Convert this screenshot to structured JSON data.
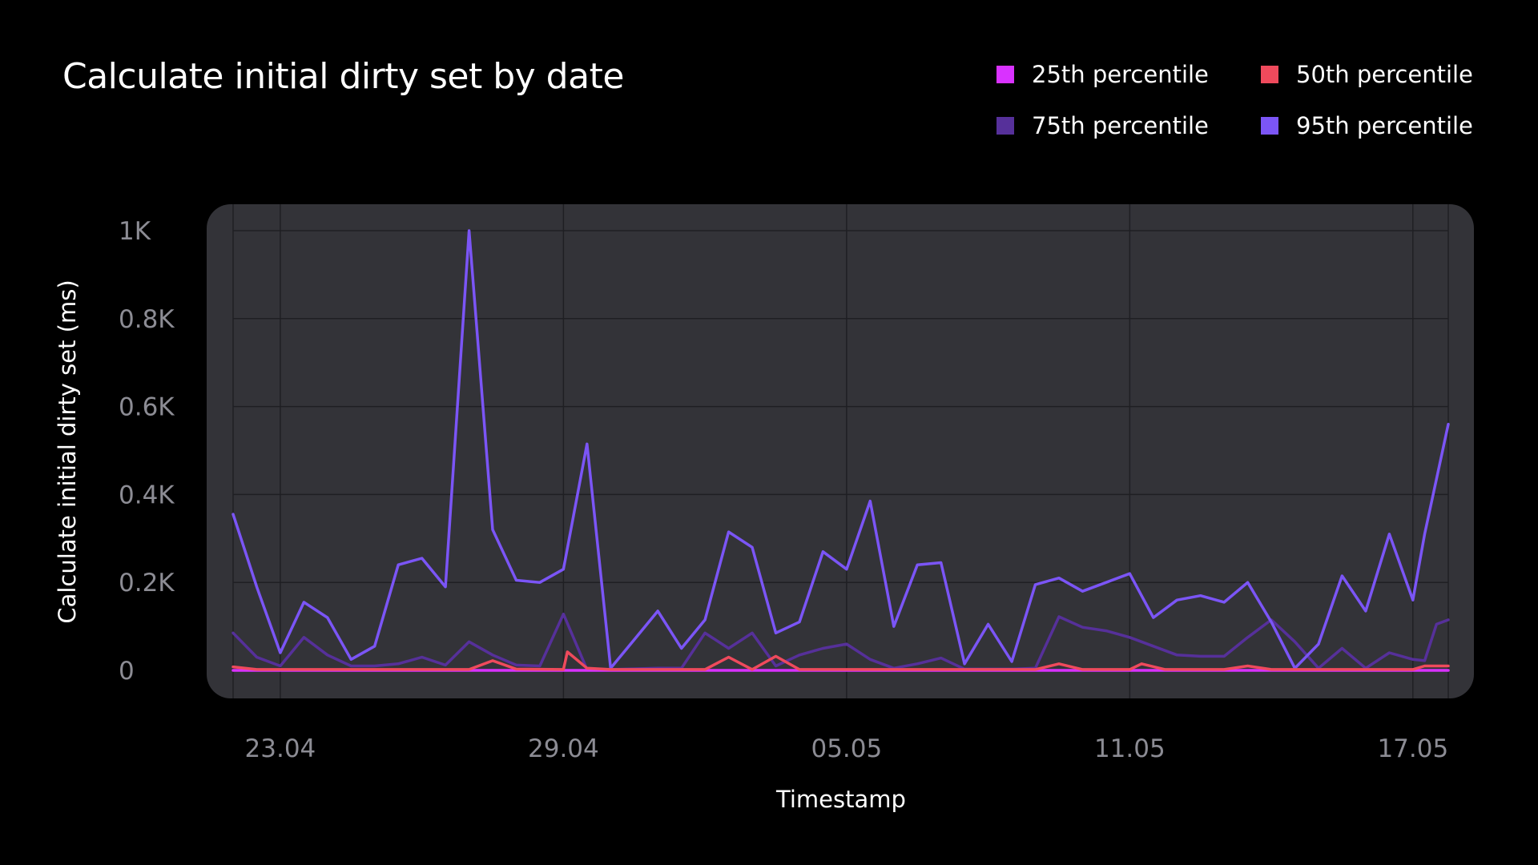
{
  "chart_data": {
    "type": "line",
    "title": "Calculate initial dirty set by date",
    "xlabel": "Timestamp",
    "ylabel": "Calculate initial dirty set (ms)",
    "x_start": "22.04",
    "x_end": "17.05",
    "x_ticks": [
      {
        "date": "23.04",
        "label": "23.04"
      },
      {
        "date": "29.04",
        "label": "29.04"
      },
      {
        "date": "05.05",
        "label": "05.05"
      },
      {
        "date": "11.05",
        "label": "11.05"
      },
      {
        "date": "17.05",
        "label": "17.05"
      }
    ],
    "y_ticks": [
      {
        "value": 0,
        "label": "0"
      },
      {
        "value": 200,
        "label": "0.2K"
      },
      {
        "value": 400,
        "label": "0.4K"
      },
      {
        "value": 600,
        "label": "0.6K"
      },
      {
        "value": 800,
        "label": "0.8K"
      },
      {
        "value": 1000,
        "label": "1K"
      }
    ],
    "ylim": [
      0,
      1000
    ],
    "grid": true,
    "legend_position": "top-right",
    "series": [
      {
        "name": "25th percentile",
        "color": "#d932ff",
        "points": [
          [
            "22.04 00:00",
            0
          ],
          [
            "22.04 12:00",
            0
          ],
          [
            "23.04 00:00",
            0
          ],
          [
            "23.04 12:00",
            0
          ],
          [
            "24.04 00:00",
            0
          ],
          [
            "24.04 12:00",
            0
          ],
          [
            "25.04 00:00",
            0
          ],
          [
            "25.04 12:00",
            0
          ],
          [
            "26.04 00:00",
            0
          ],
          [
            "26.04 12:00",
            0
          ],
          [
            "27.04 00:00",
            0
          ],
          [
            "27.04 12:00",
            0
          ],
          [
            "28.04 00:00",
            0
          ],
          [
            "28.04 12:00",
            0
          ],
          [
            "29.04 00:00",
            0
          ],
          [
            "29.04 12:00",
            0
          ],
          [
            "30.04 00:00",
            0
          ],
          [
            "30.04 12:00",
            0
          ],
          [
            "01.05 00:00",
            0
          ],
          [
            "01.05 12:00",
            0
          ],
          [
            "02.05 00:00",
            0
          ],
          [
            "02.05 12:00",
            0
          ],
          [
            "03.05 00:00",
            0
          ],
          [
            "03.05 12:00",
            0
          ],
          [
            "04.05 00:00",
            0
          ],
          [
            "04.05 12:00",
            0
          ],
          [
            "05.05 00:00",
            0
          ],
          [
            "05.05 12:00",
            0
          ],
          [
            "06.05 00:00",
            0
          ],
          [
            "06.05 12:00",
            0
          ],
          [
            "07.05 00:00",
            0
          ],
          [
            "07.05 12:00",
            0
          ],
          [
            "08.05 00:00",
            0
          ],
          [
            "08.05 12:00",
            0
          ],
          [
            "09.05 00:00",
            0
          ],
          [
            "09.05 12:00",
            0
          ],
          [
            "10.05 00:00",
            0
          ],
          [
            "10.05 12:00",
            0
          ],
          [
            "11.05 00:00",
            0
          ],
          [
            "11.05 12:00",
            0
          ],
          [
            "12.05 00:00",
            0
          ],
          [
            "12.05 12:00",
            0
          ],
          [
            "13.05 00:00",
            0
          ],
          [
            "13.05 12:00",
            0
          ],
          [
            "14.05 00:00",
            0
          ],
          [
            "14.05 12:00",
            0
          ],
          [
            "15.05 00:00",
            0
          ],
          [
            "15.05 12:00",
            0
          ],
          [
            "16.05 00:00",
            0
          ],
          [
            "16.05 12:00",
            0
          ],
          [
            "17.05 00:00",
            0
          ],
          [
            "17.05 18:00",
            0
          ]
        ]
      },
      {
        "name": "50th percentile",
        "color": "#ef4a5c",
        "points": [
          [
            "22.04 00:00",
            8
          ],
          [
            "22.04 12:00",
            2
          ],
          [
            "23.04 00:00",
            2
          ],
          [
            "24.04 00:00",
            2
          ],
          [
            "25.04 00:00",
            2
          ],
          [
            "26.04 00:00",
            2
          ],
          [
            "27.04 00:00",
            2
          ],
          [
            "27.04 12:00",
            22
          ],
          [
            "28.04 00:00",
            3
          ],
          [
            "29.04 00:00",
            2
          ],
          [
            "29.04 02:00",
            42
          ],
          [
            "29.04 12:00",
            5
          ],
          [
            "30.04 00:00",
            2
          ],
          [
            "01.05 00:00",
            2
          ],
          [
            "02.05 00:00",
            2
          ],
          [
            "02.05 12:00",
            30
          ],
          [
            "03.05 00:00",
            2
          ],
          [
            "03.05 12:00",
            32
          ],
          [
            "04.05 00:00",
            2
          ],
          [
            "05.05 00:00",
            2
          ],
          [
            "06.05 00:00",
            2
          ],
          [
            "07.05 00:00",
            2
          ],
          [
            "08.05 00:00",
            2
          ],
          [
            "09.05 00:00",
            2
          ],
          [
            "09.05 12:00",
            15
          ],
          [
            "10.05 00:00",
            2
          ],
          [
            "11.05 00:00",
            2
          ],
          [
            "11.05 06:00",
            15
          ],
          [
            "11.05 18:00",
            2
          ],
          [
            "12.05 00:00",
            2
          ],
          [
            "13.05 00:00",
            2
          ],
          [
            "13.05 12:00",
            10
          ],
          [
            "14.05 00:00",
            2
          ],
          [
            "15.05 00:00",
            2
          ],
          [
            "16.05 00:00",
            2
          ],
          [
            "17.05 00:00",
            2
          ],
          [
            "17.05 06:00",
            10
          ],
          [
            "17.05 18:00",
            10
          ]
        ]
      },
      {
        "name": "75th percentile",
        "color": "#56309a",
        "points": [
          [
            "22.04 00:00",
            85
          ],
          [
            "22.04 12:00",
            30
          ],
          [
            "23.04 00:00",
            10
          ],
          [
            "23.04 12:00",
            75
          ],
          [
            "24.04 00:00",
            35
          ],
          [
            "24.04 12:00",
            10
          ],
          [
            "25.04 00:00",
            10
          ],
          [
            "25.04 12:00",
            15
          ],
          [
            "26.04 00:00",
            30
          ],
          [
            "26.04 12:00",
            12
          ],
          [
            "27.04 00:00",
            65
          ],
          [
            "27.04 12:00",
            35
          ],
          [
            "28.04 00:00",
            12
          ],
          [
            "28.04 12:00",
            10
          ],
          [
            "29.04 00:00",
            128
          ],
          [
            "29.04 12:00",
            2
          ],
          [
            "30.04 00:00",
            2
          ],
          [
            "01.05 00:00",
            5
          ],
          [
            "01.05 12:00",
            5
          ],
          [
            "02.05 00:00",
            85
          ],
          [
            "02.05 12:00",
            50
          ],
          [
            "03.05 00:00",
            85
          ],
          [
            "03.05 12:00",
            10
          ],
          [
            "04.05 00:00",
            35
          ],
          [
            "04.05 12:00",
            50
          ],
          [
            "05.05 00:00",
            60
          ],
          [
            "05.05 12:00",
            25
          ],
          [
            "06.05 00:00",
            5
          ],
          [
            "06.05 12:00",
            15
          ],
          [
            "07.05 00:00",
            28
          ],
          [
            "07.05 12:00",
            3
          ],
          [
            "08.05 00:00",
            3
          ],
          [
            "08.05 12:00",
            3
          ],
          [
            "09.05 00:00",
            5
          ],
          [
            "09.05 12:00",
            122
          ],
          [
            "10.05 00:00",
            98
          ],
          [
            "10.05 12:00",
            90
          ],
          [
            "11.05 00:00",
            75
          ],
          [
            "11.05 12:00",
            55
          ],
          [
            "12.05 00:00",
            35
          ],
          [
            "12.05 12:00",
            32
          ],
          [
            "13.05 00:00",
            32
          ],
          [
            "13.05 12:00",
            75
          ],
          [
            "14.05 00:00",
            115
          ],
          [
            "14.05 12:00",
            65
          ],
          [
            "15.05 00:00",
            5
          ],
          [
            "15.05 12:00",
            50
          ],
          [
            "16.05 00:00",
            5
          ],
          [
            "16.05 12:00",
            40
          ],
          [
            "17.05 00:00",
            25
          ],
          [
            "17.05 06:00",
            22
          ],
          [
            "17.05 12:00",
            105
          ],
          [
            "17.05 18:00",
            115
          ]
        ]
      },
      {
        "name": "95th percentile",
        "color": "#7b55f6",
        "points": [
          [
            "22.04 00:00",
            355
          ],
          [
            "22.04 12:00",
            190
          ],
          [
            "23.04 00:00",
            40
          ],
          [
            "23.04 12:00",
            155
          ],
          [
            "24.04 00:00",
            120
          ],
          [
            "24.04 12:00",
            25
          ],
          [
            "25.04 00:00",
            55
          ],
          [
            "25.04 12:00",
            240
          ],
          [
            "26.04 00:00",
            255
          ],
          [
            "26.04 12:00",
            190
          ],
          [
            "27.04 00:00",
            1000
          ],
          [
            "27.04 12:00",
            320
          ],
          [
            "28.04 00:00",
            205
          ],
          [
            "28.04 12:00",
            200
          ],
          [
            "29.04 00:00",
            230
          ],
          [
            "29.04 12:00",
            515
          ],
          [
            "30.04 00:00",
            5
          ],
          [
            "30.04 12:00",
            70
          ],
          [
            "01.05 00:00",
            135
          ],
          [
            "01.05 12:00",
            50
          ],
          [
            "02.05 00:00",
            115
          ],
          [
            "02.05 12:00",
            315
          ],
          [
            "03.05 00:00",
            280
          ],
          [
            "03.05 12:00",
            85
          ],
          [
            "04.05 00:00",
            110
          ],
          [
            "04.05 12:00",
            270
          ],
          [
            "05.05 00:00",
            230
          ],
          [
            "05.05 12:00",
            385
          ],
          [
            "06.05 00:00",
            100
          ],
          [
            "06.05 12:00",
            240
          ],
          [
            "07.05 00:00",
            245
          ],
          [
            "07.05 12:00",
            15
          ],
          [
            "08.05 00:00",
            105
          ],
          [
            "08.05 12:00",
            20
          ],
          [
            "09.05 00:00",
            195
          ],
          [
            "09.05 12:00",
            210
          ],
          [
            "10.05 00:00",
            180
          ],
          [
            "10.05 12:00",
            200
          ],
          [
            "11.05 00:00",
            220
          ],
          [
            "11.05 12:00",
            120
          ],
          [
            "12.05 00:00",
            160
          ],
          [
            "12.05 12:00",
            170
          ],
          [
            "13.05 00:00",
            155
          ],
          [
            "13.05 12:00",
            200
          ],
          [
            "14.05 00:00",
            110
          ],
          [
            "14.05 12:00",
            5
          ],
          [
            "15.05 00:00",
            60
          ],
          [
            "15.05 12:00",
            215
          ],
          [
            "16.05 00:00",
            135
          ],
          [
            "16.05 12:00",
            310
          ],
          [
            "17.05 00:00",
            160
          ],
          [
            "17.05 06:00",
            310
          ],
          [
            "17.05 18:00",
            560
          ]
        ]
      }
    ]
  }
}
